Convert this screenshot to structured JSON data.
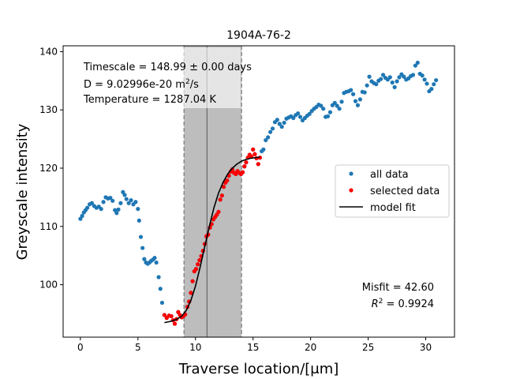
{
  "chart_data": {
    "type": "scatter",
    "title": "1904A-76-2",
    "xlabel": "Traverse location/[μm]",
    "ylabel": "Greyscale intensity",
    "xlim": [
      -1.5,
      32.5
    ],
    "ylim": [
      91,
      141
    ],
    "xticks": [
      0,
      5,
      10,
      15,
      20,
      25,
      30
    ],
    "yticks": [
      100,
      110,
      120,
      130,
      140
    ],
    "grid": false,
    "legend_position": "center-right",
    "legend": [
      "all data",
      "selected data",
      "model fit"
    ],
    "annotations": {
      "timescale": "Timescale = 148.99 ± 0.00 days",
      "diffusivity_prefix": "D = 9.02996e-20 m",
      "diffusivity_exp": "2",
      "diffusivity_suffix": "/s",
      "temperature": "Temperature = 1287.04 K",
      "misfit": "Misfit = 42.60",
      "r2_value": " = 0.9924"
    },
    "shaded_region": {
      "x_start": 9.0,
      "x_end": 14.0,
      "center": 11.0
    },
    "colors": {
      "all_data": "#1f77b4",
      "selected_data": "#ff0000",
      "model_fit": "#000000",
      "shade": "#bdbdbd"
    },
    "series": [
      {
        "name": "all data",
        "points": [
          [
            0.0,
            111.3
          ],
          [
            0.15,
            111.8
          ],
          [
            0.3,
            112.4
          ],
          [
            0.45,
            112.8
          ],
          [
            0.6,
            113.2
          ],
          [
            0.8,
            113.8
          ],
          [
            1.0,
            114.0
          ],
          [
            1.2,
            113.5
          ],
          [
            1.4,
            113.2
          ],
          [
            1.6,
            113.4
          ],
          [
            1.8,
            113.0
          ],
          [
            2.0,
            114.2
          ],
          [
            2.2,
            115.0
          ],
          [
            2.4,
            114.8
          ],
          [
            2.6,
            114.9
          ],
          [
            2.8,
            114.4
          ],
          [
            3.0,
            112.8
          ],
          [
            3.15,
            112.3
          ],
          [
            3.3,
            112.9
          ],
          [
            3.5,
            114.0
          ],
          [
            3.7,
            115.9
          ],
          [
            3.85,
            115.4
          ],
          [
            4.0,
            114.7
          ],
          [
            4.2,
            114.0
          ],
          [
            4.4,
            114.5
          ],
          [
            4.6,
            113.8
          ],
          [
            4.8,
            114.2
          ],
          [
            5.0,
            113.0
          ],
          [
            5.1,
            111.0
          ],
          [
            5.25,
            108.2
          ],
          [
            5.4,
            106.3
          ],
          [
            5.55,
            104.4
          ],
          [
            5.7,
            103.8
          ],
          [
            5.85,
            103.6
          ],
          [
            6.0,
            103.8
          ],
          [
            6.15,
            104.1
          ],
          [
            6.3,
            104.3
          ],
          [
            6.45,
            104.6
          ],
          [
            6.6,
            103.8
          ],
          [
            6.8,
            101.3
          ],
          [
            6.95,
            99.3
          ],
          [
            7.1,
            96.9
          ],
          [
            7.3,
            94.8
          ],
          [
            7.5,
            94.3
          ],
          [
            7.7,
            94.7
          ],
          [
            7.9,
            94.6
          ],
          [
            8.05,
            93.9
          ],
          [
            8.2,
            93.3
          ],
          [
            8.35,
            94.1
          ],
          [
            8.5,
            95.3
          ],
          [
            8.65,
            94.8
          ],
          [
            8.8,
            94.4
          ],
          [
            8.95,
            94.6
          ],
          [
            9.1,
            94.9
          ],
          [
            9.3,
            96.2
          ],
          [
            9.45,
            97.1
          ],
          [
            9.6,
            98.6
          ],
          [
            9.75,
            100.6
          ],
          [
            9.9,
            102.3
          ],
          [
            10.05,
            102.7
          ],
          [
            10.2,
            103.5
          ],
          [
            10.35,
            104.2
          ],
          [
            10.5,
            104.9
          ],
          [
            10.65,
            105.8
          ],
          [
            10.8,
            107.0
          ],
          [
            10.95,
            108.3
          ],
          [
            11.1,
            108.6
          ],
          [
            11.25,
            109.8
          ],
          [
            11.4,
            110.4
          ],
          [
            11.55,
            111.2
          ],
          [
            11.7,
            111.6
          ],
          [
            11.85,
            112.0
          ],
          [
            12.0,
            112.5
          ],
          [
            12.15,
            114.6
          ],
          [
            12.3,
            115.3
          ],
          [
            12.45,
            116.8
          ],
          [
            12.6,
            117.5
          ],
          [
            12.75,
            117.9
          ],
          [
            12.9,
            118.7
          ],
          [
            13.05,
            119.4
          ],
          [
            13.2,
            119.8
          ],
          [
            13.35,
            119.2
          ],
          [
            13.5,
            119.0
          ],
          [
            13.65,
            119.5
          ],
          [
            13.8,
            119.2
          ],
          [
            13.95,
            119.0
          ],
          [
            14.1,
            119.3
          ],
          [
            14.25,
            120.3
          ],
          [
            14.4,
            121.0
          ],
          [
            14.55,
            121.8
          ],
          [
            14.7,
            122.3
          ],
          [
            14.85,
            122.0
          ],
          [
            15.0,
            123.2
          ],
          [
            15.15,
            122.4
          ],
          [
            15.3,
            121.7
          ],
          [
            15.45,
            120.7
          ],
          [
            15.6,
            121.8
          ],
          [
            15.75,
            122.9
          ],
          [
            15.9,
            123.2
          ],
          [
            16.1,
            124.8
          ],
          [
            16.3,
            125.3
          ],
          [
            16.5,
            126.2
          ],
          [
            16.7,
            126.8
          ],
          [
            16.9,
            127.9
          ],
          [
            17.1,
            128.3
          ],
          [
            17.3,
            127.6
          ],
          [
            17.5,
            127.1
          ],
          [
            17.7,
            127.8
          ],
          [
            17.9,
            128.5
          ],
          [
            18.1,
            128.7
          ],
          [
            18.3,
            128.9
          ],
          [
            18.5,
            128.6
          ],
          [
            18.7,
            129.1
          ],
          [
            18.9,
            129.4
          ],
          [
            19.1,
            128.8
          ],
          [
            19.3,
            128.2
          ],
          [
            19.5,
            128.6
          ],
          [
            19.7,
            129.0
          ],
          [
            19.9,
            129.3
          ],
          [
            20.1,
            129.8
          ],
          [
            20.3,
            130.2
          ],
          [
            20.5,
            130.5
          ],
          [
            20.7,
            130.9
          ],
          [
            20.9,
            130.7
          ],
          [
            21.1,
            130.2
          ],
          [
            21.3,
            128.8
          ],
          [
            21.5,
            128.9
          ],
          [
            21.7,
            129.6
          ],
          [
            21.9,
            130.8
          ],
          [
            22.1,
            131.2
          ],
          [
            22.3,
            130.7
          ],
          [
            22.5,
            130.2
          ],
          [
            22.7,
            131.4
          ],
          [
            22.9,
            132.9
          ],
          [
            23.1,
            133.1
          ],
          [
            23.3,
            133.2
          ],
          [
            23.5,
            133.4
          ],
          [
            23.7,
            132.7
          ],
          [
            23.9,
            131.5
          ],
          [
            24.1,
            130.8
          ],
          [
            24.3,
            131.8
          ],
          [
            24.5,
            133.1
          ],
          [
            24.7,
            133.0
          ],
          [
            24.9,
            134.2
          ],
          [
            25.1,
            135.7
          ],
          [
            25.3,
            134.9
          ],
          [
            25.5,
            134.6
          ],
          [
            25.7,
            134.4
          ],
          [
            25.9,
            135.0
          ],
          [
            26.1,
            135.3
          ],
          [
            26.3,
            136.0
          ],
          [
            26.5,
            135.5
          ],
          [
            26.7,
            135.2
          ],
          [
            26.9,
            135.6
          ],
          [
            27.1,
            134.7
          ],
          [
            27.3,
            133.9
          ],
          [
            27.5,
            134.9
          ],
          [
            27.7,
            135.6
          ],
          [
            27.9,
            136.1
          ],
          [
            28.1,
            135.7
          ],
          [
            28.3,
            135.2
          ],
          [
            28.5,
            135.4
          ],
          [
            28.7,
            135.8
          ],
          [
            28.9,
            136.0
          ],
          [
            29.1,
            137.6
          ],
          [
            29.3,
            138.1
          ],
          [
            29.5,
            136.2
          ],
          [
            29.7,
            135.9
          ],
          [
            29.9,
            135.2
          ],
          [
            30.1,
            134.5
          ],
          [
            30.3,
            133.2
          ],
          [
            30.5,
            133.6
          ],
          [
            30.7,
            134.4
          ],
          [
            30.9,
            135.1
          ]
        ]
      },
      {
        "name": "selected data",
        "points": [
          [
            7.3,
            94.8
          ],
          [
            7.5,
            94.3
          ],
          [
            7.7,
            94.7
          ],
          [
            7.9,
            94.6
          ],
          [
            8.05,
            93.9
          ],
          [
            8.2,
            93.3
          ],
          [
            8.35,
            94.1
          ],
          [
            8.5,
            95.3
          ],
          [
            8.65,
            94.8
          ],
          [
            8.8,
            94.4
          ],
          [
            8.95,
            94.6
          ],
          [
            9.1,
            94.9
          ],
          [
            9.3,
            96.2
          ],
          [
            9.45,
            97.1
          ],
          [
            9.6,
            98.6
          ],
          [
            9.75,
            100.6
          ],
          [
            9.9,
            102.3
          ],
          [
            10.05,
            102.7
          ],
          [
            10.2,
            103.5
          ],
          [
            10.35,
            104.2
          ],
          [
            10.5,
            104.9
          ],
          [
            10.65,
            105.8
          ],
          [
            10.8,
            107.0
          ],
          [
            10.95,
            108.3
          ],
          [
            11.1,
            108.6
          ],
          [
            11.25,
            109.8
          ],
          [
            11.4,
            110.4
          ],
          [
            11.55,
            111.2
          ],
          [
            11.7,
            111.6
          ],
          [
            11.85,
            112.0
          ],
          [
            12.0,
            112.5
          ],
          [
            12.15,
            114.6
          ],
          [
            12.3,
            115.3
          ],
          [
            12.45,
            116.8
          ],
          [
            12.6,
            117.5
          ],
          [
            12.75,
            117.9
          ],
          [
            12.9,
            118.7
          ],
          [
            13.05,
            119.4
          ],
          [
            13.2,
            119.8
          ],
          [
            13.35,
            119.2
          ],
          [
            13.5,
            119.0
          ],
          [
            13.65,
            119.5
          ],
          [
            13.8,
            119.2
          ],
          [
            13.95,
            119.0
          ],
          [
            14.1,
            119.3
          ],
          [
            14.25,
            120.3
          ],
          [
            14.4,
            121.0
          ],
          [
            14.55,
            121.8
          ],
          [
            14.7,
            122.3
          ],
          [
            14.85,
            122.0
          ],
          [
            15.0,
            123.2
          ],
          [
            15.15,
            122.4
          ],
          [
            15.3,
            121.7
          ],
          [
            15.45,
            120.7
          ],
          [
            15.6,
            121.8
          ]
        ]
      },
      {
        "name": "model fit",
        "points": [
          [
            7.3,
            93.5
          ],
          [
            7.8,
            93.7
          ],
          [
            8.3,
            94.0
          ],
          [
            8.8,
            94.6
          ],
          [
            9.2,
            95.6
          ],
          [
            9.6,
            97.3
          ],
          [
            10.0,
            99.8
          ],
          [
            10.4,
            103.0
          ],
          [
            10.8,
            106.5
          ],
          [
            11.2,
            110.0
          ],
          [
            11.6,
            113.2
          ],
          [
            12.0,
            115.7
          ],
          [
            12.4,
            117.6
          ],
          [
            12.8,
            119.0
          ],
          [
            13.2,
            120.0
          ],
          [
            13.6,
            120.7
          ],
          [
            14.0,
            121.2
          ],
          [
            14.4,
            121.5
          ],
          [
            14.8,
            121.7
          ],
          [
            15.2,
            121.8
          ],
          [
            15.6,
            121.9
          ]
        ]
      }
    ]
  }
}
